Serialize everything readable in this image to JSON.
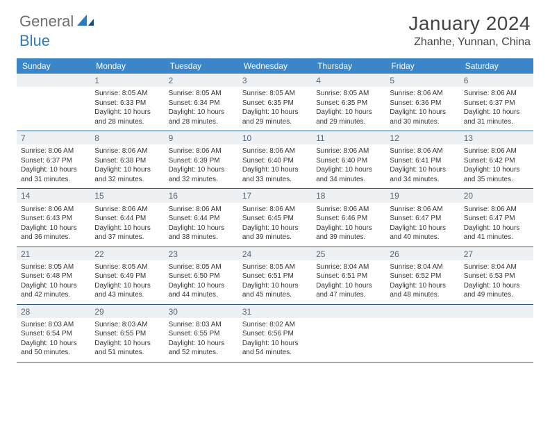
{
  "brand": {
    "general": "General",
    "blue": "Blue"
  },
  "title": "January 2024",
  "location": "Zhanhe, Yunnan, China",
  "colors": {
    "header_bg": "#3a86c8",
    "header_text": "#ffffff",
    "daynum_bg": "#eef1f3",
    "daynum_text": "#546676",
    "row_border": "#2f5d8a",
    "body_text": "#333333",
    "title_text": "#444444",
    "logo_gray": "#6d6d6d",
    "logo_blue": "#2f7bbf"
  },
  "day_labels": [
    "Sunday",
    "Monday",
    "Tuesday",
    "Wednesday",
    "Thursday",
    "Friday",
    "Saturday"
  ],
  "weeks": [
    [
      null,
      {
        "n": "1",
        "sr": "8:05 AM",
        "ss": "6:33 PM",
        "dl": "10 hours and 28 minutes."
      },
      {
        "n": "2",
        "sr": "8:05 AM",
        "ss": "6:34 PM",
        "dl": "10 hours and 28 minutes."
      },
      {
        "n": "3",
        "sr": "8:05 AM",
        "ss": "6:35 PM",
        "dl": "10 hours and 29 minutes."
      },
      {
        "n": "4",
        "sr": "8:05 AM",
        "ss": "6:35 PM",
        "dl": "10 hours and 29 minutes."
      },
      {
        "n": "5",
        "sr": "8:06 AM",
        "ss": "6:36 PM",
        "dl": "10 hours and 30 minutes."
      },
      {
        "n": "6",
        "sr": "8:06 AM",
        "ss": "6:37 PM",
        "dl": "10 hours and 31 minutes."
      }
    ],
    [
      {
        "n": "7",
        "sr": "8:06 AM",
        "ss": "6:37 PM",
        "dl": "10 hours and 31 minutes."
      },
      {
        "n": "8",
        "sr": "8:06 AM",
        "ss": "6:38 PM",
        "dl": "10 hours and 32 minutes."
      },
      {
        "n": "9",
        "sr": "8:06 AM",
        "ss": "6:39 PM",
        "dl": "10 hours and 32 minutes."
      },
      {
        "n": "10",
        "sr": "8:06 AM",
        "ss": "6:40 PM",
        "dl": "10 hours and 33 minutes."
      },
      {
        "n": "11",
        "sr": "8:06 AM",
        "ss": "6:40 PM",
        "dl": "10 hours and 34 minutes."
      },
      {
        "n": "12",
        "sr": "8:06 AM",
        "ss": "6:41 PM",
        "dl": "10 hours and 34 minutes."
      },
      {
        "n": "13",
        "sr": "8:06 AM",
        "ss": "6:42 PM",
        "dl": "10 hours and 35 minutes."
      }
    ],
    [
      {
        "n": "14",
        "sr": "8:06 AM",
        "ss": "6:43 PM",
        "dl": "10 hours and 36 minutes."
      },
      {
        "n": "15",
        "sr": "8:06 AM",
        "ss": "6:44 PM",
        "dl": "10 hours and 37 minutes."
      },
      {
        "n": "16",
        "sr": "8:06 AM",
        "ss": "6:44 PM",
        "dl": "10 hours and 38 minutes."
      },
      {
        "n": "17",
        "sr": "8:06 AM",
        "ss": "6:45 PM",
        "dl": "10 hours and 39 minutes."
      },
      {
        "n": "18",
        "sr": "8:06 AM",
        "ss": "6:46 PM",
        "dl": "10 hours and 39 minutes."
      },
      {
        "n": "19",
        "sr": "8:06 AM",
        "ss": "6:47 PM",
        "dl": "10 hours and 40 minutes."
      },
      {
        "n": "20",
        "sr": "8:06 AM",
        "ss": "6:47 PM",
        "dl": "10 hours and 41 minutes."
      }
    ],
    [
      {
        "n": "21",
        "sr": "8:05 AM",
        "ss": "6:48 PM",
        "dl": "10 hours and 42 minutes."
      },
      {
        "n": "22",
        "sr": "8:05 AM",
        "ss": "6:49 PM",
        "dl": "10 hours and 43 minutes."
      },
      {
        "n": "23",
        "sr": "8:05 AM",
        "ss": "6:50 PM",
        "dl": "10 hours and 44 minutes."
      },
      {
        "n": "24",
        "sr": "8:05 AM",
        "ss": "6:51 PM",
        "dl": "10 hours and 45 minutes."
      },
      {
        "n": "25",
        "sr": "8:04 AM",
        "ss": "6:51 PM",
        "dl": "10 hours and 47 minutes."
      },
      {
        "n": "26",
        "sr": "8:04 AM",
        "ss": "6:52 PM",
        "dl": "10 hours and 48 minutes."
      },
      {
        "n": "27",
        "sr": "8:04 AM",
        "ss": "6:53 PM",
        "dl": "10 hours and 49 minutes."
      }
    ],
    [
      {
        "n": "28",
        "sr": "8:03 AM",
        "ss": "6:54 PM",
        "dl": "10 hours and 50 minutes."
      },
      {
        "n": "29",
        "sr": "8:03 AM",
        "ss": "6:55 PM",
        "dl": "10 hours and 51 minutes."
      },
      {
        "n": "30",
        "sr": "8:03 AM",
        "ss": "6:55 PM",
        "dl": "10 hours and 52 minutes."
      },
      {
        "n": "31",
        "sr": "8:02 AM",
        "ss": "6:56 PM",
        "dl": "10 hours and 54 minutes."
      },
      null,
      null,
      null
    ]
  ],
  "labels": {
    "sunrise": "Sunrise: ",
    "sunset": "Sunset: ",
    "daylight": "Daylight: "
  }
}
